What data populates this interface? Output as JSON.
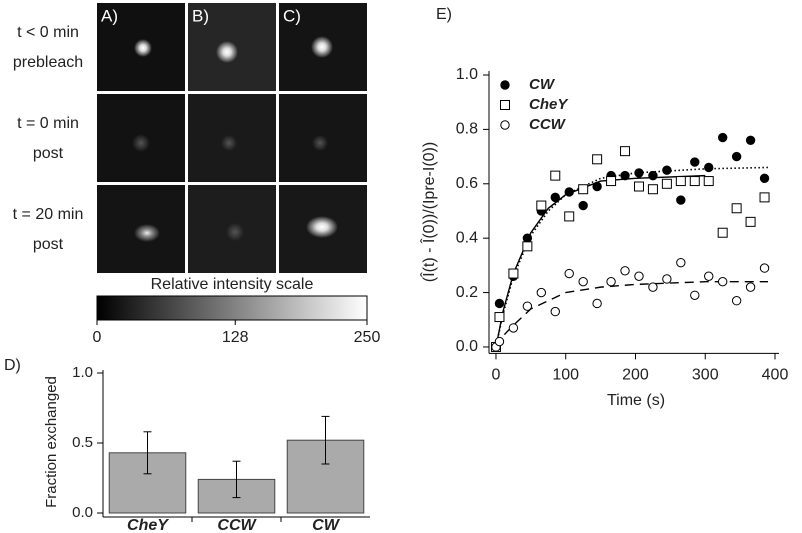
{
  "images": {
    "columns": [
      "A)",
      "B)",
      "C)"
    ],
    "rows": [
      [
        "t < 0 min",
        "prebleach"
      ],
      [
        "t = 0 min",
        "post"
      ],
      [
        "t = 20 min",
        "post"
      ]
    ]
  },
  "chart_data": [
    {
      "type": "colorbar",
      "title": "Relative intensity scale",
      "xlim": [
        0,
        250
      ],
      "xticks": [
        0,
        128,
        250
      ]
    },
    {
      "type": "bar",
      "panel_label": "D)",
      "ylabel": "Fraction exchanged",
      "categories": [
        "CheY",
        "CCW",
        "CW"
      ],
      "values": [
        0.43,
        0.24,
        0.52
      ],
      "errors": [
        0.15,
        0.13,
        0.17
      ],
      "color": "#aaaaaa",
      "ylim": [
        0,
        1.0
      ],
      "yticks": [
        {
          "value": 0,
          "label": "0.0"
        },
        {
          "value": 0.5,
          "label": "0.5"
        },
        {
          "value": 1,
          "label": "1.0"
        }
      ]
    },
    {
      "type": "scatter",
      "panel_label": "E)",
      "xlabel": "Time (s)",
      "ylabel": "(Î(t) - Î(0))/(Ipre-I(0))",
      "xlim": [
        -10,
        400
      ],
      "xticks": [
        0,
        100,
        200,
        300,
        400
      ],
      "ylim": [
        -0.02,
        1.0
      ],
      "yticks": [
        {
          "value": 0,
          "label": "0.0"
        },
        {
          "value": 0.2,
          "label": "0.2"
        },
        {
          "value": 0.4,
          "label": "0.4"
        },
        {
          "value": 0.6,
          "label": "0.6"
        },
        {
          "value": 0.8,
          "label": "0.8"
        },
        {
          "value": 1,
          "label": "1.0"
        }
      ],
      "legend": "upper left",
      "series": [
        {
          "name": "CW",
          "color": "#000000",
          "marker": "circle",
          "filled": true,
          "fit_style": "solid",
          "x": [
            0,
            5,
            25,
            45,
            65,
            85,
            105,
            125,
            145,
            165,
            185,
            205,
            225,
            245,
            265,
            285,
            305,
            325,
            345,
            365,
            385
          ],
          "values": [
            0,
            0.16,
            0.26,
            0.4,
            0.5,
            0.55,
            0.57,
            0.52,
            0.59,
            0.63,
            0.63,
            0.64,
            0.63,
            0.65,
            0.54,
            0.68,
            0.66,
            0.77,
            0.7,
            0.76,
            0.62
          ],
          "fit_x": [
            0,
            10,
            25,
            50,
            75,
            100,
            150,
            200,
            300
          ],
          "fit_values": [
            0,
            0.13,
            0.27,
            0.42,
            0.51,
            0.56,
            0.61,
            0.62,
            0.63
          ]
        },
        {
          "name": "CheY",
          "color": "#000000",
          "marker": "square",
          "filled": false,
          "fit_style": "dotted",
          "x": [
            0,
            5,
            25,
            45,
            65,
            85,
            105,
            125,
            145,
            165,
            185,
            205,
            225,
            245,
            265,
            285,
            305,
            325,
            345,
            365,
            385
          ],
          "values": [
            0,
            0.11,
            0.27,
            0.37,
            0.52,
            0.63,
            0.48,
            0.58,
            0.69,
            0.61,
            0.72,
            0.59,
            0.58,
            0.6,
            0.61,
            0.61,
            0.61,
            0.42,
            0.51,
            0.46,
            0.55
          ],
          "fit_x": [
            0,
            10,
            25,
            50,
            75,
            100,
            150,
            200,
            300,
            390
          ],
          "fit_values": [
            0,
            0.12,
            0.26,
            0.41,
            0.5,
            0.56,
            0.62,
            0.64,
            0.655,
            0.66
          ]
        },
        {
          "name": "CCW",
          "color": "#000000",
          "marker": "circle",
          "filled": false,
          "fit_style": "dashed",
          "x": [
            0,
            5,
            25,
            45,
            65,
            85,
            105,
            125,
            145,
            165,
            185,
            205,
            225,
            245,
            265,
            285,
            305,
            325,
            345,
            365,
            385
          ],
          "values": [
            0,
            0.02,
            0.07,
            0.15,
            0.2,
            0.13,
            0.27,
            0.24,
            0.16,
            0.24,
            0.28,
            0.26,
            0.22,
            0.25,
            0.31,
            0.19,
            0.26,
            0.24,
            0.17,
            0.22,
            0.29
          ],
          "fit_x": [
            0,
            10,
            25,
            50,
            75,
            100,
            150,
            200,
            300,
            390
          ],
          "fit_values": [
            0,
            0.04,
            0.08,
            0.14,
            0.17,
            0.2,
            0.22,
            0.23,
            0.24,
            0.24
          ]
        }
      ]
    }
  ]
}
